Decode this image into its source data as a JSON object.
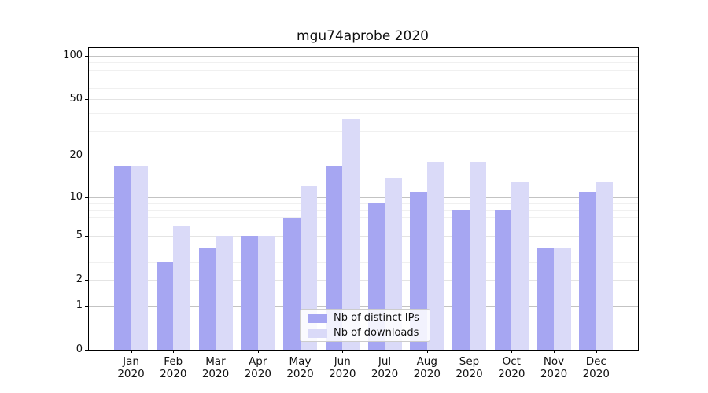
{
  "title": "mgu74aprobe 2020",
  "colors": {
    "distinct_ips": "#a6a6f2",
    "downloads": "#dadaf8",
    "grid_decade": "#c3c3c3",
    "grid_major": "#e4e4e4",
    "grid_minor": "#f0f0f0",
    "background": "#ffffff"
  },
  "chart_data": {
    "type": "bar",
    "title": "mgu74aprobe 2020",
    "categories": [
      "Jan 2020",
      "Feb 2020",
      "Mar 2020",
      "Apr 2020",
      "May 2020",
      "Jun 2020",
      "Jul 2020",
      "Aug 2020",
      "Sep 2020",
      "Oct 2020",
      "Nov 2020",
      "Dec 2020"
    ],
    "x_months": [
      "Jan",
      "Feb",
      "Mar",
      "Apr",
      "May",
      "Jun",
      "Jul",
      "Aug",
      "Sep",
      "Oct",
      "Nov",
      "Dec"
    ],
    "x_year": "2020",
    "series": [
      {
        "name": "Nb of distinct IPs",
        "color": "#a6a6f2",
        "values": [
          17,
          3,
          4,
          5,
          7,
          17,
          9,
          11,
          8,
          8,
          4,
          11
        ]
      },
      {
        "name": "Nb of downloads",
        "color": "#dadaf8",
        "values": [
          17,
          6,
          5,
          5,
          12,
          36,
          14,
          18,
          18,
          13,
          4,
          13
        ]
      }
    ],
    "yscale": "log1p",
    "ylim": [
      0,
      112
    ],
    "yticks": [
      0,
      1,
      2,
      5,
      10,
      20,
      50,
      100
    ],
    "yticks_decade": [
      1,
      10,
      100
    ],
    "yticks_major": [
      2,
      5,
      20,
      50
    ],
    "yticks_minor": [
      3,
      4,
      6,
      7,
      8,
      9,
      30,
      40,
      60,
      70,
      80,
      90
    ],
    "grid": true,
    "legend_position": "lower-center-inside",
    "xlabel": "",
    "ylabel": ""
  }
}
